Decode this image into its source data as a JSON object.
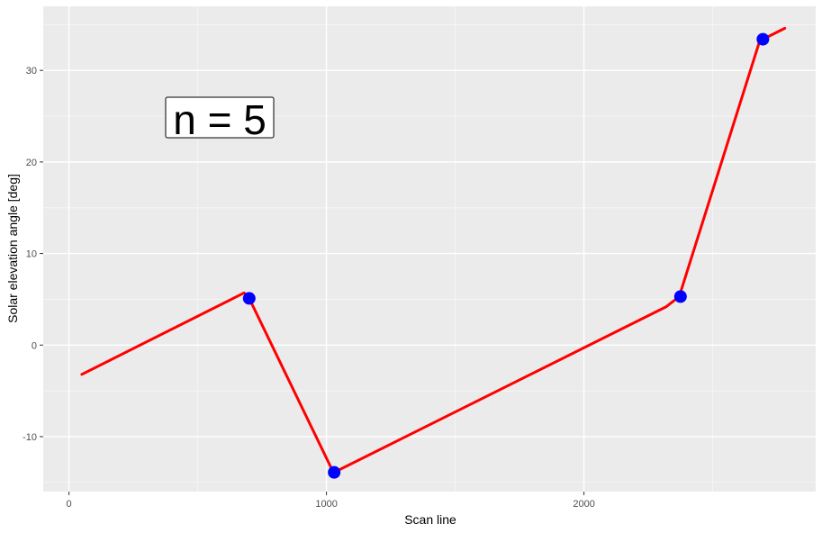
{
  "chart_data": {
    "type": "line",
    "title": "",
    "xlabel": "Scan line",
    "ylabel": "Solar elevation angle [deg]",
    "xlim": [
      -100,
      2900
    ],
    "ylim": [
      -16,
      37
    ],
    "x_ticks": [
      0,
      1000,
      2000
    ],
    "x_tick_labels": [
      "0",
      "1000",
      "2000"
    ],
    "y_ticks": [
      -10,
      0,
      10,
      20,
      30
    ],
    "y_tick_labels": [
      "-10",
      "0",
      "10",
      "20",
      "30"
    ],
    "grid": true,
    "legend": "none",
    "annotation": "n = 5",
    "line_color": "#FF0000",
    "point_color": "#0000FF",
    "panel_color": "#EBEBEB",
    "series": [
      {
        "kind": "line",
        "x": [
          50,
          680,
          700,
          1020,
          1030,
          2320,
          2370,
          2680,
          2695,
          2780
        ],
        "y": [
          -3.2,
          5.7,
          5.1,
          -13.5,
          -13.9,
          4.2,
          5.3,
          33.0,
          33.4,
          34.6
        ]
      },
      {
        "kind": "points",
        "x": [
          700,
          1030,
          2375,
          2695
        ],
        "y": [
          5.1,
          -13.9,
          5.3,
          33.4
        ]
      }
    ]
  }
}
